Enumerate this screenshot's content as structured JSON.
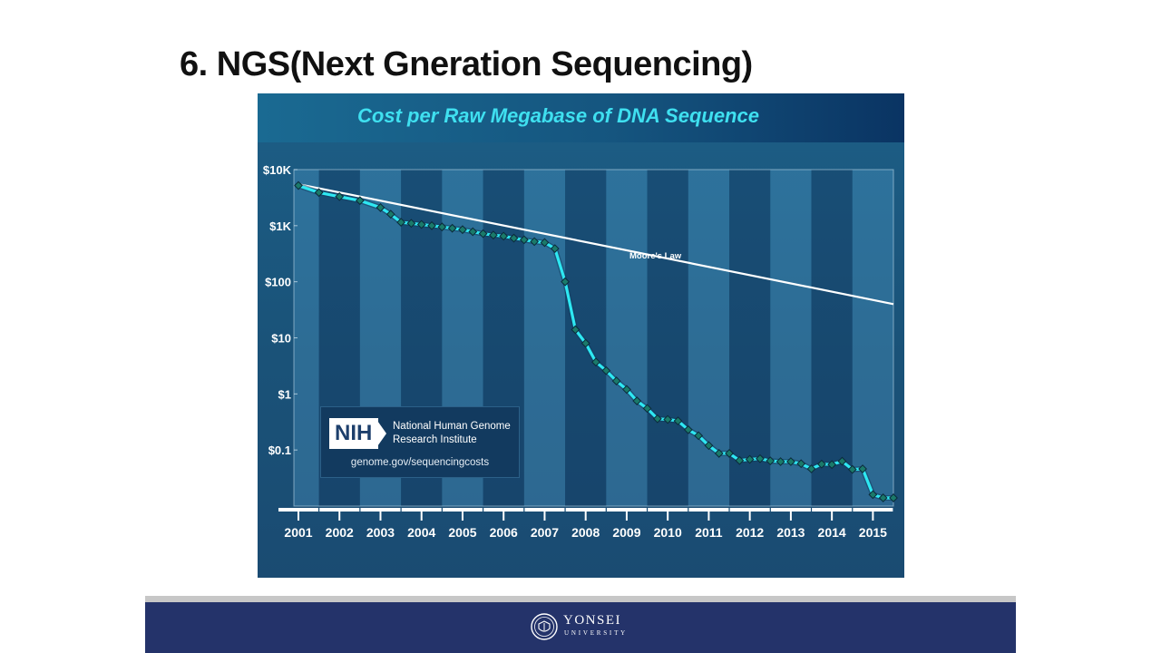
{
  "slide": {
    "title": "6. NGS(Next Gneration Sequencing)"
  },
  "colors": {
    "accent": "#3fe0f0",
    "series": "#2ee8f2",
    "moore": "#ffffff",
    "footer": "#24336a"
  },
  "chart_data": {
    "type": "line",
    "title": "Cost per Raw Megabase of DNA Sequence",
    "yscale": "log",
    "ylim": [
      0.01,
      10000
    ],
    "xlim": [
      2001.0,
      2015.5
    ],
    "y_ticks": [
      {
        "value": 10000,
        "label": "$10K"
      },
      {
        "value": 1000,
        "label": "$1K"
      },
      {
        "value": 100,
        "label": "$100"
      },
      {
        "value": 10,
        "label": "$10"
      },
      {
        "value": 1,
        "label": "$1"
      },
      {
        "value": 0.1,
        "label": "$0.1"
      }
    ],
    "x_ticks": [
      "2001",
      "2002",
      "2003",
      "2004",
      "2005",
      "2006",
      "2007",
      "2008",
      "2009",
      "2010",
      "2011",
      "2012",
      "2013",
      "2014",
      "2015"
    ],
    "grid": false,
    "series": [
      {
        "name": "Cost per Raw Megabase",
        "marker": "diamond",
        "x": [
          2001.0,
          2001.5,
          2002.0,
          2002.5,
          2003.0,
          2003.25,
          2003.5,
          2003.75,
          2004.0,
          2004.25,
          2004.5,
          2004.75,
          2005.0,
          2005.25,
          2005.5,
          2005.75,
          2006.0,
          2006.25,
          2006.5,
          2006.75,
          2007.0,
          2007.25,
          2007.5,
          2007.75,
          2008.0,
          2008.25,
          2008.5,
          2008.75,
          2009.0,
          2009.25,
          2009.5,
          2009.75,
          2010.0,
          2010.25,
          2010.5,
          2010.75,
          2011.0,
          2011.25,
          2011.5,
          2011.75,
          2012.0,
          2012.25,
          2012.5,
          2012.75,
          2013.0,
          2013.25,
          2013.5,
          2013.75,
          2014.0,
          2014.25,
          2014.5,
          2014.75,
          2015.0,
          2015.25,
          2015.5
        ],
        "values": [
          5200,
          3900,
          3300,
          2800,
          2100,
          1600,
          1150,
          1100,
          1050,
          1000,
          950,
          900,
          850,
          780,
          720,
          680,
          650,
          600,
          560,
          520,
          500,
          390,
          100,
          14,
          8,
          3.7,
          2.6,
          1.7,
          1.2,
          0.75,
          0.55,
          0.36,
          0.35,
          0.33,
          0.23,
          0.18,
          0.12,
          0.087,
          0.087,
          0.065,
          0.068,
          0.07,
          0.064,
          0.062,
          0.062,
          0.057,
          0.046,
          0.056,
          0.055,
          0.063,
          0.045,
          0.046,
          0.016,
          0.014,
          0.014
        ]
      },
      {
        "name": "Moore's Law",
        "x": [
          2001.0,
          2015.5
        ],
        "values": [
          5500,
          40
        ]
      }
    ],
    "annotations": [
      {
        "text": "Moore's Law",
        "x": 2009.7,
        "y": 260
      }
    ]
  },
  "nih": {
    "logo": "NIH",
    "line1": "National Human Genome",
    "line2": "Research Institute",
    "url": "genome.gov/sequencingcosts"
  },
  "footer": {
    "university": "YONSEI",
    "sub": "UNIVERSITY"
  }
}
